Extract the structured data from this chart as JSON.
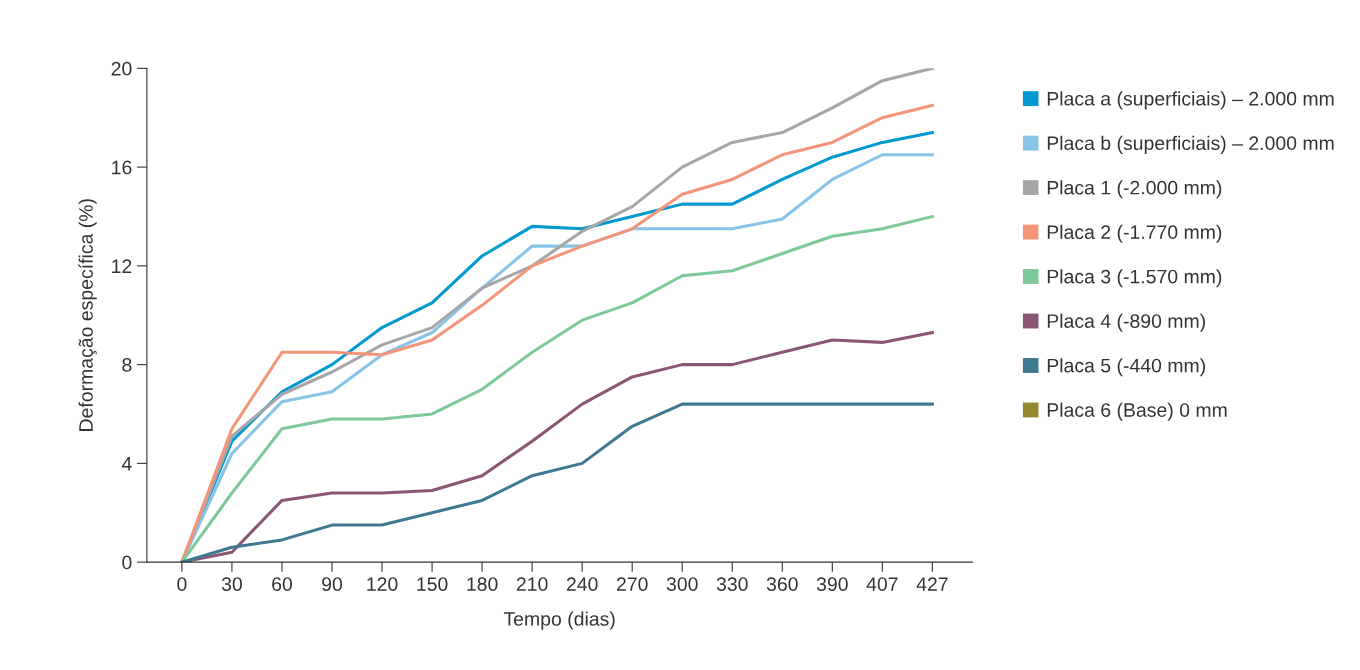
{
  "chart_data": {
    "type": "line",
    "xlabel": "Tempo (dias)",
    "ylabel": "Deformação específica (%)",
    "categories": [
      "0",
      "30",
      "60",
      "90",
      "120",
      "150",
      "180",
      "210",
      "240",
      "270",
      "300",
      "330",
      "360",
      "390",
      "407",
      "427"
    ],
    "ylim": [
      0,
      20
    ],
    "yticks": [
      0,
      4,
      8,
      12,
      16,
      20
    ],
    "grid": false,
    "legend": "right",
    "marker": "none",
    "line_style": "solid",
    "series": [
      {
        "name": "Placa a (superficiais) – 2.000 mm",
        "color": "#0099d0",
        "values": [
          0,
          4.9,
          6.9,
          8.0,
          9.5,
          10.5,
          12.4,
          13.6,
          13.5,
          14.0,
          14.5,
          14.5,
          15.5,
          16.4,
          17.0,
          17.4
        ]
      },
      {
        "name": "Placa b (superficiais) – 2.000 mm",
        "color": "#88c4e8",
        "values": [
          0,
          4.4,
          6.5,
          6.9,
          8.4,
          9.3,
          11.1,
          12.8,
          12.8,
          13.5,
          13.5,
          13.5,
          13.9,
          15.5,
          16.5,
          16.5
        ]
      },
      {
        "name": "Placa 1 (-2.000 mm)",
        "color": "#a6a6a8",
        "values": [
          0,
          5.1,
          6.8,
          7.7,
          8.8,
          9.5,
          11.1,
          12.0,
          13.4,
          14.4,
          16.0,
          17.0,
          17.4,
          18.4,
          19.5,
          20.0
        ]
      },
      {
        "name": "Placa 2 (-1.770 mm)",
        "color": "#f4957a",
        "values": [
          0,
          5.4,
          8.5,
          8.5,
          8.4,
          9.0,
          10.4,
          12.0,
          12.8,
          13.5,
          14.9,
          15.5,
          16.5,
          17.0,
          18.0,
          18.5
        ]
      },
      {
        "name": "Placa 3 (-1.570 mm)",
        "color": "#7ec99a",
        "values": [
          0,
          2.8,
          5.4,
          5.8,
          5.8,
          6.0,
          7.0,
          8.5,
          9.8,
          10.5,
          11.6,
          11.8,
          12.5,
          13.2,
          13.5,
          14.0
        ]
      },
      {
        "name": "Placa 4 (-890 mm)",
        "color": "#8b5673",
        "values": [
          0,
          0.4,
          2.5,
          2.8,
          2.8,
          2.9,
          3.5,
          4.9,
          6.4,
          7.5,
          8.0,
          8.0,
          8.5,
          9.0,
          8.9,
          9.3
        ]
      },
      {
        "name": "Placa 5 (-440 mm)",
        "color": "#3e7891",
        "values": [
          0,
          0.6,
          0.9,
          1.5,
          1.5,
          2.0,
          2.5,
          3.5,
          4.0,
          5.5,
          6.4,
          6.4,
          6.4,
          6.4,
          6.4,
          6.4
        ]
      },
      {
        "name": "Placa 6 (Base) 0 mm",
        "color": "#938a2e",
        "values": [
          null,
          null,
          null,
          null,
          null,
          null,
          null,
          null,
          null,
          null,
          null,
          null,
          null,
          null,
          null,
          null
        ]
      }
    ]
  }
}
